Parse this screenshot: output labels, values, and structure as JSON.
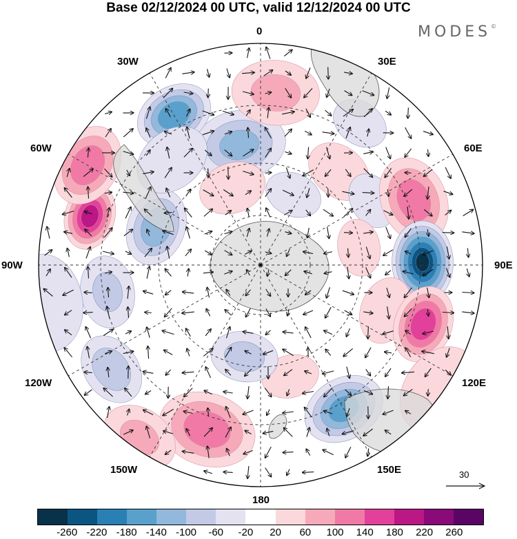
{
  "title": "Base 02/12/2024 00 UTC, valid 12/12/2024 00 UTC",
  "brand": "MODES",
  "brand_mark": "©",
  "longitude_labels": {
    "top": "0",
    "top_left": "30W",
    "top_right": "30E",
    "left_upper": "60W",
    "right_upper": "60E",
    "left": "90W",
    "right": "90E",
    "left_lower": "120W",
    "right_lower": "120E",
    "bottom_left": "150W",
    "bottom_right": "150E",
    "bottom": "180"
  },
  "vector_reference": "30",
  "colorbar": {
    "ticks": [
      "-260",
      "-220",
      "-180",
      "-140",
      "-100",
      "-60",
      "-20",
      "20",
      "60",
      "100",
      "140",
      "180",
      "220",
      "260"
    ],
    "colors": [
      "#08324a",
      "#0b5583",
      "#2a80b5",
      "#5aa0cc",
      "#92b8dc",
      "#c2cae6",
      "#e4e2f1",
      "#ffffff",
      "#fbd8dc",
      "#f6aab9",
      "#f07aa5",
      "#e2409a",
      "#bb1785",
      "#8a0a79",
      "#5a0566"
    ]
  },
  "anomalies": [
    {
      "lon": -10,
      "colat": 0.55,
      "value": -110,
      "size": 0.17
    },
    {
      "lon": -30,
      "colat": 0.78,
      "value": -175,
      "size": 0.14
    },
    {
      "lon": 5,
      "colat": 0.78,
      "value": 65,
      "size": 0.16
    },
    {
      "lon": 40,
      "colat": 0.55,
      "value": 50,
      "size": 0.12
    },
    {
      "lon": 35,
      "colat": 0.78,
      "value": -45,
      "size": 0.1
    },
    {
      "lon": 60,
      "colat": 0.58,
      "value": -50,
      "size": 0.1
    },
    {
      "lon": 67,
      "colat": 0.75,
      "value": 125,
      "size": 0.16
    },
    {
      "lon": 89,
      "colat": 0.73,
      "value": -265,
      "size": 0.15
    },
    {
      "lon": 110,
      "colat": 0.6,
      "value": 30,
      "size": 0.12
    },
    {
      "lon": 110,
      "colat": 0.78,
      "value": 170,
      "size": 0.14
    },
    {
      "lon": 125,
      "colat": 0.98,
      "value": 30,
      "size": 0.17
    },
    {
      "lon": 150,
      "colat": 0.75,
      "value": -160,
      "size": 0.15
    },
    {
      "lon": 165,
      "colat": 0.52,
      "value": 45,
      "size": 0.1
    },
    {
      "lon": -162,
      "colat": 0.78,
      "value": 125,
      "size": 0.18
    },
    {
      "lon": -145,
      "colat": 0.95,
      "value": 60,
      "size": 0.14
    },
    {
      "lon": -170,
      "colat": 0.42,
      "value": -70,
      "size": 0.12
    },
    {
      "lon": -125,
      "colat": 0.82,
      "value": -80,
      "size": 0.13
    },
    {
      "lon": -100,
      "colat": 0.7,
      "value": -60,
      "size": 0.13
    },
    {
      "lon": -70,
      "colat": 0.5,
      "value": -130,
      "size": 0.14
    },
    {
      "lon": -74,
      "colat": 0.8,
      "value": 200,
      "size": 0.12
    },
    {
      "lon": -60,
      "colat": 0.9,
      "value": 130,
      "size": 0.15
    },
    {
      "lon": -100,
      "colat": 0.98,
      "value": -35,
      "size": 0.18
    },
    {
      "lon": -20,
      "colat": 0.37,
      "value": 55,
      "size": 0.12
    },
    {
      "lon": 25,
      "colat": 0.35,
      "value": -35,
      "size": 0.1
    },
    {
      "lon": 80,
      "colat": 0.45,
      "value": 55,
      "size": 0.1
    },
    {
      "lon": -40,
      "colat": 0.62,
      "value": -40,
      "size": 0.14
    }
  ]
}
